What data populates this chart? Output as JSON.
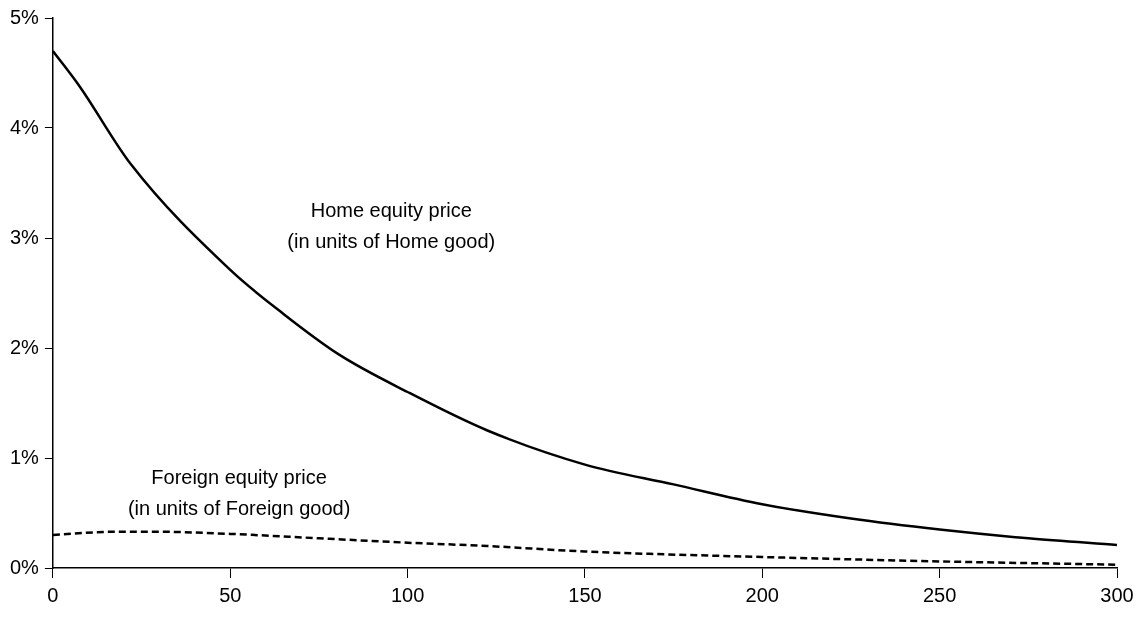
{
  "chart_data": {
    "type": "line",
    "x": [
      0,
      7.5,
      22,
      50,
      65,
      80.7,
      100,
      122.5,
      150,
      175,
      200,
      225,
      250,
      275,
      300
    ],
    "series": [
      {
        "type": "line",
        "color": "#000000",
        "line_style": "solid",
        "values": [
          4.7,
          4.38,
          3.67,
          2.71,
          2.31,
          1.94,
          1.6,
          1.25,
          0.94,
          0.76,
          0.58,
          0.45,
          0.35,
          0.27,
          0.21
        ]
      },
      {
        "type": "line",
        "color": "#000000",
        "line_style": "dashed",
        "x": [
          0,
          17.5,
          28.6,
          50,
          75,
          100,
          122.5,
          150,
          200,
          250,
          300
        ],
        "values": [
          0.3,
          0.33,
          0.33,
          0.31,
          0.27,
          0.23,
          0.2,
          0.15,
          0.1,
          0.06,
          0.03
        ]
      }
    ],
    "xlim": [
      0,
      300
    ],
    "xticks": [
      0,
      50,
      100,
      150,
      200,
      250,
      300
    ],
    "ylim": [
      0,
      5
    ],
    "yticks": [
      {
        "value": 0,
        "label": "0%"
      },
      {
        "value": 1,
        "label": "1%"
      },
      {
        "value": 2,
        "label": "2%"
      },
      {
        "value": 3,
        "label": "3%"
      },
      {
        "value": 4,
        "label": "4%"
      },
      {
        "value": 5,
        "label": "5%"
      }
    ],
    "grid": false,
    "legend": false,
    "marker": "none",
    "annotations": [
      "Home equity price\n(in units of Home good)",
      "Foreign equity price\n(in units of Foreign good)"
    ]
  }
}
